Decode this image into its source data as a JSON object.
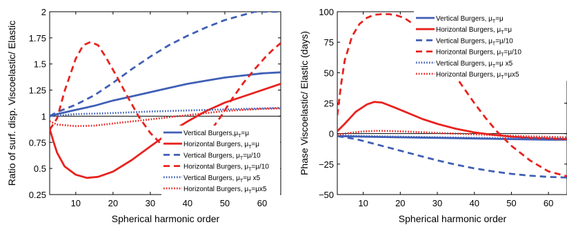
{
  "chart_data": [
    {
      "type": "line",
      "title": "",
      "xlabel": "Spherical harmonic order",
      "ylabel": "Ratio of surf. disp. Viscoelastic/ Elastic",
      "xlim": [
        3,
        65
      ],
      "ylim": [
        0.25,
        2
      ],
      "xticks": [
        10,
        20,
        30,
        40,
        50,
        60
      ],
      "xtick_labels": [
        "10",
        "20",
        "30",
        "40",
        "50",
        "60"
      ],
      "yticks": [
        0.25,
        0.5,
        0.75,
        1,
        1.25,
        1.5,
        1.75,
        2
      ],
      "ytick_labels": [
        "0.25",
        "0.5",
        "0.75",
        "1",
        "1.25",
        "1.5",
        "1.75",
        "2"
      ],
      "reference_line": 1,
      "grid": false,
      "legend_position": "bottom-right",
      "series": [
        {
          "name": "Vertical Burgers,μT=μ",
          "legend": {
            "base": "Vertical Burgers,μ",
            "sub": "T",
            "tail": "=μ"
          },
          "color": "#3f5fb5",
          "dash": "solid",
          "x": [
            3,
            5,
            10,
            15,
            20,
            25,
            30,
            35,
            40,
            45,
            50,
            55,
            60,
            65
          ],
          "y": [
            1.0,
            1.02,
            1.06,
            1.1,
            1.15,
            1.19,
            1.23,
            1.27,
            1.31,
            1.34,
            1.37,
            1.39,
            1.41,
            1.42
          ]
        },
        {
          "name": "Horizontal Burgers, μT=μ",
          "legend": {
            "base": "Horizontal Burgers, μ",
            "sub": "T",
            "tail": "=μ"
          },
          "color": "#e8221e",
          "dash": "solid",
          "x": [
            3,
            4,
            5,
            7,
            10,
            13,
            16,
            20,
            25,
            30,
            35,
            40,
            45,
            50,
            55,
            60,
            65
          ],
          "y": [
            0.88,
            0.76,
            0.65,
            0.52,
            0.44,
            0.41,
            0.42,
            0.47,
            0.58,
            0.71,
            0.84,
            0.95,
            1.05,
            1.13,
            1.19,
            1.25,
            1.31
          ]
        },
        {
          "name": "Vertical Burgers, μT=μ/10",
          "legend": {
            "base": "Vertical Burgers, μ",
            "sub": "T",
            "tail": "=μ/10"
          },
          "color": "#3f5fb5",
          "dash": "dashed",
          "x": [
            3,
            5,
            10,
            15,
            20,
            25,
            30,
            35,
            40,
            45,
            50,
            55,
            58,
            62,
            65
          ],
          "y": [
            1.0,
            1.04,
            1.11,
            1.2,
            1.32,
            1.45,
            1.57,
            1.68,
            1.77,
            1.85,
            1.92,
            1.97,
            2.0,
            2.0,
            2.0
          ]
        },
        {
          "name": "Horizontal Burgers, μT=μ/10",
          "legend": {
            "base": "Horizontal Burgers, μ",
            "sub": "T",
            "tail": "=μ/10"
          },
          "color": "#e8221e",
          "dash": "dashed",
          "x": [
            3,
            5,
            7,
            10,
            12,
            14,
            16,
            18,
            21,
            24,
            27,
            30,
            33,
            36,
            38,
            40,
            43,
            46,
            49,
            52,
            55,
            58,
            61,
            63,
            65
          ],
          "y": [
            0.87,
            0.98,
            1.24,
            1.55,
            1.68,
            1.71,
            1.68,
            1.57,
            1.38,
            1.18,
            0.99,
            0.84,
            0.73,
            0.66,
            0.65,
            0.66,
            0.72,
            0.85,
            1.0,
            1.17,
            1.32,
            1.45,
            1.57,
            1.64,
            1.7
          ]
        },
        {
          "name": "Vertical Burgers, μT=μx5",
          "legend": {
            "base": "Vertical Burgers, μ",
            "sub": "T",
            "tail": "=μ x5"
          },
          "color": "#3f5fb5",
          "dash": "dotted",
          "x": [
            3,
            10,
            20,
            30,
            40,
            50,
            60,
            65
          ],
          "y": [
            1.0,
            1.02,
            1.03,
            1.045,
            1.055,
            1.065,
            1.075,
            1.08
          ]
        },
        {
          "name": "Horizontal Burgers, μT=μx5",
          "legend": {
            "base": "Horizontal Burgers, μ",
            "sub": "T",
            "tail": "=μx5"
          },
          "color": "#e8221e",
          "dash": "dotted",
          "x": [
            3,
            5,
            10,
            15,
            20,
            25,
            30,
            35,
            40,
            45,
            50,
            55,
            60,
            65
          ],
          "y": [
            0.95,
            0.92,
            0.905,
            0.91,
            0.93,
            0.95,
            0.97,
            0.99,
            1.01,
            1.03,
            1.05,
            1.06,
            1.07,
            1.075
          ]
        }
      ]
    },
    {
      "type": "line",
      "title": "",
      "xlabel": "Spherical harmonic order",
      "ylabel": "Phase Viscoelastic/ Elastic (days)",
      "xlim": [
        3,
        65
      ],
      "ylim": [
        -50,
        100
      ],
      "xticks": [
        10,
        20,
        30,
        40,
        50,
        60
      ],
      "xtick_labels": [
        "10",
        "20",
        "30",
        "40",
        "50",
        "60"
      ],
      "yticks": [
        -50,
        -25,
        0,
        25,
        50,
        75,
        100
      ],
      "ytick_labels": [
        "−50",
        "−25",
        "0",
        "25",
        "50",
        "75",
        "100"
      ],
      "reference_line": 0,
      "grid": false,
      "legend_position": "top-right",
      "series": [
        {
          "name": "Vertical Burgers, μT=μ",
          "legend": {
            "base": "Vertical Burgers, μ",
            "sub": "T",
            "tail": "=μ"
          },
          "color": "#3f5fb5",
          "dash": "solid",
          "x": [
            3,
            10,
            20,
            30,
            40,
            50,
            60,
            65
          ],
          "y": [
            -2,
            -2.5,
            -3,
            -3.5,
            -4,
            -4.5,
            -5,
            -5
          ]
        },
        {
          "name": "Horizontal Burgers, μT=μ",
          "legend": {
            "base": "Horizontal Burgers, μ",
            "sub": "T",
            "tail": "=μ"
          },
          "color": "#e8221e",
          "dash": "solid",
          "x": [
            3,
            5,
            8,
            11,
            13,
            15,
            18,
            22,
            26,
            30,
            35,
            40,
            45,
            50,
            55,
            60,
            65
          ],
          "y": [
            2,
            8,
            18,
            24,
            26,
            25.5,
            22,
            17,
            12,
            8,
            4,
            1,
            -1,
            -2.5,
            -3.5,
            -4,
            -4.5
          ]
        },
        {
          "name": "Vertical Burgers, μT=μ/10",
          "legend": {
            "base": "Vertical Burgers, μ",
            "sub": "T",
            "tail": "=μ/10"
          },
          "color": "#3f5fb5",
          "dash": "dashed",
          "x": [
            3,
            5,
            8,
            10,
            15,
            20,
            25,
            30,
            35,
            40,
            45,
            50,
            55,
            60,
            65
          ],
          "y": [
            -2,
            -3,
            -4.5,
            -6,
            -10,
            -14,
            -18,
            -22,
            -25.5,
            -28.5,
            -31,
            -33,
            -34.5,
            -35.5,
            -36
          ]
        },
        {
          "name": "Horizontal Burgers, μT=μ/10",
          "legend": {
            "base": "Horizontal Burgers, μ",
            "sub": "T",
            "tail": "=μ/10"
          },
          "color": "#e8221e",
          "dash": "dashed",
          "x": [
            3,
            4,
            5,
            7,
            9,
            11,
            13,
            15,
            17,
            19,
            21,
            23,
            25,
            28,
            31,
            34,
            37,
            40,
            43,
            46,
            50,
            55,
            60,
            65
          ],
          "y": [
            15,
            40,
            60,
            80,
            90,
            95,
            97.5,
            98,
            98,
            97,
            95,
            91,
            86,
            76,
            64,
            51,
            38,
            25,
            13,
            2,
            -10,
            -22,
            -31,
            -35
          ]
        },
        {
          "name": "Vertical Burgers, μT=μ x5",
          "legend": {
            "base": "Vertical Burgers, μ",
            "sub": "T",
            "tail": "=μ x5"
          },
          "color": "#3f5fb5",
          "dash": "dotted",
          "x": [
            3,
            10,
            20,
            30,
            40,
            50,
            60,
            65
          ],
          "y": [
            -1.5,
            -2,
            -2.5,
            -3,
            -3.5,
            -3.8,
            -4,
            -4
          ]
        },
        {
          "name": "Horizontal Burgers, μT=μx5",
          "legend": {
            "base": "Horizontal Burgers, μ",
            "sub": "T",
            "tail": "=μx5"
          },
          "color": "#e8221e",
          "dash": "dotted",
          "x": [
            3,
            6,
            10,
            14,
            18,
            22,
            26,
            30,
            35,
            40,
            45,
            50,
            55,
            60,
            65
          ],
          "y": [
            -1,
            0.5,
            1.8,
            2.3,
            2.1,
            1.6,
            1.1,
            0.6,
            0,
            -0.6,
            -1.2,
            -1.8,
            -2.3,
            -2.6,
            -3
          ]
        }
      ]
    }
  ]
}
